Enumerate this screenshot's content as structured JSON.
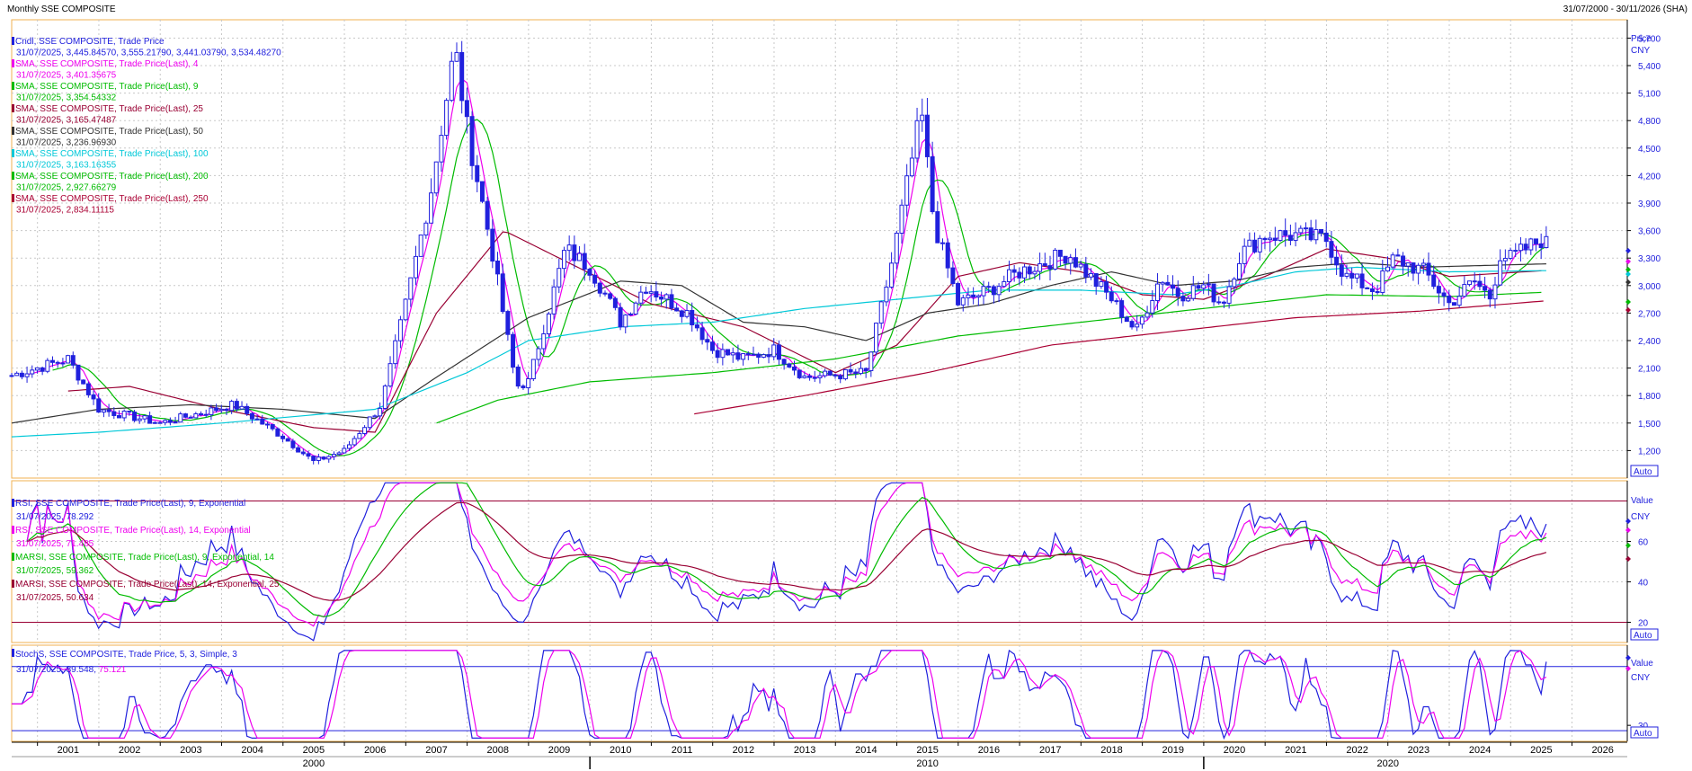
{
  "window": {
    "title": "Monthly SSE COMPOSITE",
    "date_range": "31/07/2000 - 30/11/2026 (SHA)"
  },
  "colors": {
    "candles": "#2020dd",
    "sma4": "#ee00ee",
    "sma9": "#00bb00",
    "sma25": "#990033",
    "sma50": "#333333",
    "sma100": "#00c8d8",
    "sma200": "#00bb00",
    "sma250": "#aa0033",
    "rsi9": "#2020dd",
    "rsi14": "#ee00ee",
    "marsi9": "#00bb00",
    "marsi25": "#990033",
    "stoch_k": "#2020dd",
    "stoch_d": "#ee00ee",
    "ref_line_rsi": "#990033",
    "ref_line_stoch": "#2020dd",
    "grid": "#c8c8c8",
    "pane_border": "#f0b050"
  },
  "chart_data": [
    {
      "type": "candlestick",
      "pane": "price",
      "axis_label": "Price",
      "axis_unit": "CNY",
      "scale_button": "Auto",
      "ylim": [
        900,
        5900
      ],
      "yticks": [
        1200,
        1500,
        1800,
        2100,
        2400,
        2700,
        3000,
        3300,
        3600,
        3900,
        4200,
        4500,
        4800,
        5100,
        5400,
        5700
      ],
      "ytick_labels": [
        "1,200",
        "1,500",
        "1,800",
        "2,100",
        "2,400",
        "2,700",
        "3,000",
        "3,300",
        "3,600",
        "3,900",
        "4,200",
        "4,500",
        "4,800",
        "5,100",
        "5,400",
        "5,700"
      ],
      "xlim": [
        2000.58,
        2026.9
      ],
      "legend": [
        {
          "name": "Cndl, SSE COMPOSITE, Trade Price",
          "value": "31/07/2025, 3,445.84570, 3,555.21790, 3,441.03790, 3,534.48270",
          "color": "#2020dd"
        },
        {
          "name": "SMA, SSE COMPOSITE, Trade Price(Last),  4",
          "value": "31/07/2025, 3,401.35675",
          "color": "#ee00ee"
        },
        {
          "name": "SMA, SSE COMPOSITE, Trade Price(Last),  9",
          "value": "31/07/2025, 3,354.54332",
          "color": "#00bb00"
        },
        {
          "name": "SMA, SSE COMPOSITE, Trade Price(Last),  25",
          "value": "31/07/2025, 3,165.47487",
          "color": "#990033"
        },
        {
          "name": "SMA, SSE COMPOSITE, Trade Price(Last),  50",
          "value": "31/07/2025, 3,236.96930",
          "color": "#333333"
        },
        {
          "name": "SMA, SSE COMPOSITE, Trade Price(Last),  100",
          "value": "31/07/2025, 3,163.16355",
          "color": "#00c8d8"
        },
        {
          "name": "SMA, SSE COMPOSITE, Trade Price(Last),  200",
          "value": "31/07/2025, 2,927.66279",
          "color": "#00bb00"
        },
        {
          "name": "SMA, SSE COMPOSITE, Trade Price(Last),  250",
          "value": "31/07/2025, 2,834.11115",
          "color": "#aa0033"
        }
      ],
      "close_keypoints": [
        [
          2000.58,
          2020
        ],
        [
          2001.5,
          2200
        ],
        [
          2002.0,
          1650
        ],
        [
          2003.0,
          1500
        ],
        [
          2004.2,
          1700
        ],
        [
          2005.0,
          1350
        ],
        [
          2005.5,
          1080
        ],
        [
          2006.0,
          1200
        ],
        [
          2006.6,
          1700
        ],
        [
          2007.0,
          2800
        ],
        [
          2007.4,
          4000
        ],
        [
          2007.8,
          5600
        ],
        [
          2008.0,
          4700
        ],
        [
          2008.4,
          3400
        ],
        [
          2008.8,
          1900
        ],
        [
          2009.0,
          1950
        ],
        [
          2009.6,
          3400
        ],
        [
          2010.0,
          3200
        ],
        [
          2010.5,
          2600
        ],
        [
          2010.9,
          3000
        ],
        [
          2011.6,
          2700
        ],
        [
          2012.0,
          2300
        ],
        [
          2012.5,
          2200
        ],
        [
          2013.0,
          2300
        ],
        [
          2013.5,
          2000
        ],
        [
          2014.5,
          2050
        ],
        [
          2014.9,
          3200
        ],
        [
          2015.4,
          4900
        ],
        [
          2015.6,
          3700
        ],
        [
          2016.0,
          2800
        ],
        [
          2016.5,
          2950
        ],
        [
          2017.0,
          3150
        ],
        [
          2017.8,
          3350
        ],
        [
          2018.0,
          3200
        ],
        [
          2018.5,
          2850
        ],
        [
          2018.9,
          2500
        ],
        [
          2019.3,
          3100
        ],
        [
          2019.6,
          2900
        ],
        [
          2020.0,
          3000
        ],
        [
          2020.3,
          2800
        ],
        [
          2020.6,
          3350
        ],
        [
          2021.0,
          3550
        ],
        [
          2021.5,
          3550
        ],
        [
          2022.0,
          3500
        ],
        [
          2022.3,
          3100
        ],
        [
          2022.8,
          2950
        ],
        [
          2023.1,
          3300
        ],
        [
          2023.6,
          3150
        ],
        [
          2024.0,
          2800
        ],
        [
          2024.4,
          3050
        ],
        [
          2024.7,
          2850
        ],
        [
          2024.8,
          3350
        ],
        [
          2025.0,
          3300
        ],
        [
          2025.58,
          3535
        ]
      ],
      "sma_keypoints": {
        "sma25": [
          [
            2001.5,
            1850
          ],
          [
            2002.5,
            1900
          ],
          [
            2004.0,
            1650
          ],
          [
            2005.5,
            1450
          ],
          [
            2006.5,
            1400
          ],
          [
            2007.5,
            2700
          ],
          [
            2008.6,
            3600
          ],
          [
            2009.5,
            3300
          ],
          [
            2011.0,
            2800
          ],
          [
            2012.5,
            2550
          ],
          [
            2014.0,
            2050
          ],
          [
            2015.0,
            2350
          ],
          [
            2016.0,
            3100
          ],
          [
            2017.0,
            3250
          ],
          [
            2018.0,
            3150
          ],
          [
            2019.0,
            2900
          ],
          [
            2020.0,
            2850
          ],
          [
            2021.0,
            3100
          ],
          [
            2022.0,
            3400
          ],
          [
            2023.0,
            3300
          ],
          [
            2024.0,
            3100
          ],
          [
            2025.58,
            3165
          ]
        ],
        "sma50": [
          [
            2000.58,
            1500
          ],
          [
            2002.0,
            1650
          ],
          [
            2003.5,
            1700
          ],
          [
            2005.0,
            1650
          ],
          [
            2006.5,
            1550
          ],
          [
            2007.5,
            2000
          ],
          [
            2009.0,
            2650
          ],
          [
            2010.5,
            3050
          ],
          [
            2011.5,
            3000
          ],
          [
            2012.5,
            2600
          ],
          [
            2013.5,
            2550
          ],
          [
            2014.5,
            2400
          ],
          [
            2015.5,
            2700
          ],
          [
            2016.5,
            2800
          ],
          [
            2017.5,
            3000
          ],
          [
            2018.5,
            3150
          ],
          [
            2019.5,
            3000
          ],
          [
            2020.5,
            3050
          ],
          [
            2021.5,
            3200
          ],
          [
            2022.5,
            3250
          ],
          [
            2023.5,
            3200
          ],
          [
            2025.58,
            3237
          ]
        ],
        "sma100": [
          [
            2000.58,
            1350
          ],
          [
            2002.0,
            1400
          ],
          [
            2004.0,
            1500
          ],
          [
            2006.5,
            1650
          ],
          [
            2008.0,
            2050
          ],
          [
            2009.0,
            2400
          ],
          [
            2010.5,
            2550
          ],
          [
            2012.0,
            2600
          ],
          [
            2013.5,
            2750
          ],
          [
            2015.0,
            2850
          ],
          [
            2016.5,
            2950
          ],
          [
            2018.0,
            2950
          ],
          [
            2019.5,
            2900
          ],
          [
            2020.5,
            3000
          ],
          [
            2021.5,
            3150
          ],
          [
            2022.5,
            3200
          ],
          [
            2024.0,
            3150
          ],
          [
            2025.58,
            3163
          ]
        ],
        "sma200": [
          [
            2007.5,
            1500
          ],
          [
            2008.5,
            1750
          ],
          [
            2010.0,
            1950
          ],
          [
            2012.0,
            2050
          ],
          [
            2014.0,
            2200
          ],
          [
            2016.0,
            2450
          ],
          [
            2018.0,
            2600
          ],
          [
            2020.0,
            2750
          ],
          [
            2022.0,
            2900
          ],
          [
            2024.0,
            2880
          ],
          [
            2025.58,
            2928
          ]
        ],
        "sma250": [
          [
            2011.7,
            1600
          ],
          [
            2013.5,
            1800
          ],
          [
            2015.5,
            2050
          ],
          [
            2017.5,
            2350
          ],
          [
            2019.5,
            2500
          ],
          [
            2021.5,
            2650
          ],
          [
            2023.5,
            2720
          ],
          [
            2025.58,
            2834
          ]
        ]
      }
    },
    {
      "type": "line",
      "pane": "rsi",
      "axis_label": "Value",
      "axis_unit": "CNY",
      "scale_button": "Auto",
      "ylim": [
        10,
        90
      ],
      "yticks": [
        20,
        40,
        60
      ],
      "ytick_labels": [
        "20",
        "40",
        "60"
      ],
      "reference_lines": [
        20,
        80
      ],
      "legend": [
        {
          "name": "RSI, SSE COMPOSITE, Trade Price(Last),  9, Exponential",
          "value": "31/07/2025, 78.292",
          "color": "#2020dd"
        },
        {
          "name": "RSI, SSE COMPOSITE, Trade Price(Last),  14, Exponential",
          "value": "31/07/2025, 71.485",
          "color": "#ee00ee"
        },
        {
          "name": "MARSI, SSE COMPOSITE, Trade Price(Last),  9, Exponential, 14",
          "value": "31/07/2025, 59.362",
          "color": "#00bb00"
        },
        {
          "name": "MARSI, SSE COMPOSITE, Trade Price(Last),  14, Exponential, 25",
          "value": "31/07/2025, 50.634",
          "color": "#990033"
        }
      ]
    },
    {
      "type": "line",
      "pane": "stochastic",
      "axis_label": "Value",
      "axis_unit": "CNY",
      "scale_button": "Auto",
      "ylim": [
        15,
        105
      ],
      "yticks": [
        30
      ],
      "ytick_labels": [
        "30"
      ],
      "reference_lines": [
        25,
        85
      ],
      "legend": [
        {
          "name": "StochS, SSE COMPOSITE, Trade Price,  5, 3, Simple, 3",
          "value": "31/07/2025, 89.548, ",
          "value2": "75.121",
          "color": "#2020dd",
          "color2": "#ee00ee"
        }
      ]
    }
  ],
  "x_axis": {
    "years": [
      "2001",
      "2002",
      "2003",
      "2004",
      "2005",
      "2006",
      "2007",
      "2008",
      "2009",
      "2010",
      "2011",
      "2012",
      "2013",
      "2014",
      "2015",
      "2016",
      "2017",
      "2018",
      "2019",
      "2020",
      "2021",
      "2022",
      "2023",
      "2024",
      "2025",
      "2026"
    ],
    "decades": [
      "2000",
      "2010",
      "2020"
    ]
  }
}
